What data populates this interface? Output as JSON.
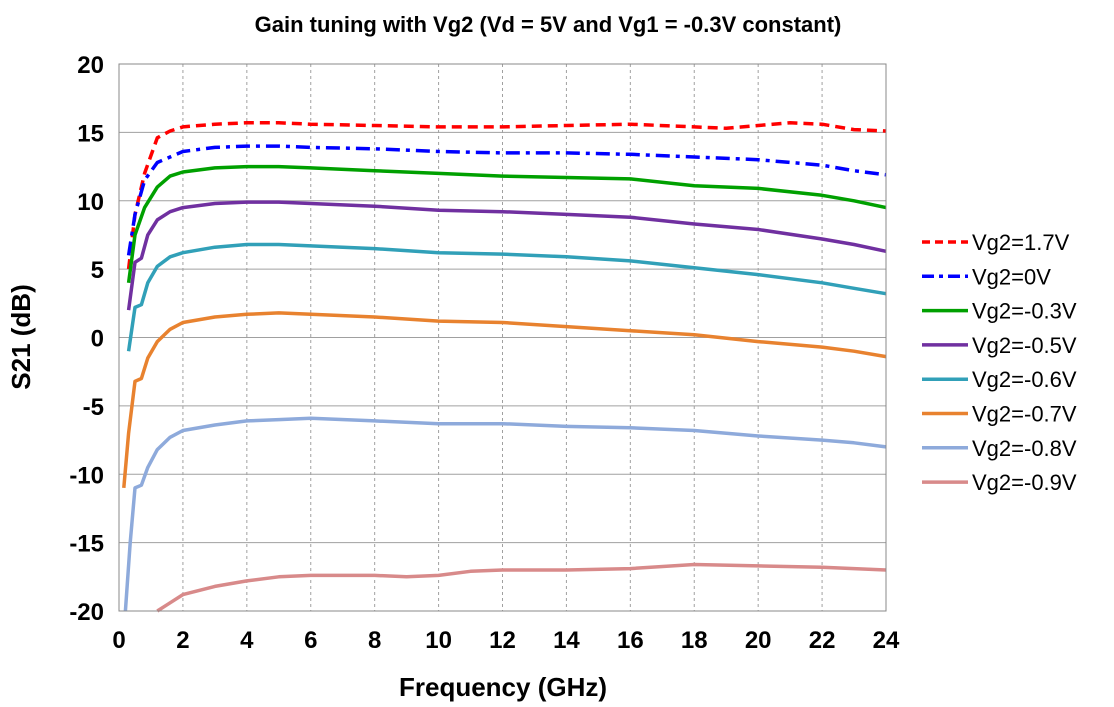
{
  "chart_data": {
    "type": "line",
    "title": "Gain tuning with Vg2 (Vd = 5V and Vg1 = -0.3V constant)",
    "xlabel": "Frequency (GHz)",
    "ylabel": "S21 (dB)",
    "xlim": [
      0,
      24
    ],
    "ylim": [
      -20,
      20
    ],
    "xticks": [
      0,
      2,
      4,
      6,
      8,
      10,
      12,
      14,
      16,
      18,
      20,
      22,
      24
    ],
    "yticks": [
      -20,
      -15,
      -10,
      -5,
      0,
      5,
      10,
      15,
      20
    ],
    "grid": {
      "vertical": "dashed",
      "horizontal": "solid"
    },
    "legend_position": "right",
    "series": [
      {
        "name": "Vg2=1.7V",
        "color": "#ff0000",
        "style": "dashed",
        "points": [
          [
            0.3,
            5
          ],
          [
            0.5,
            9
          ],
          [
            0.8,
            12
          ],
          [
            1.2,
            14.6
          ],
          [
            1.6,
            15.1
          ],
          [
            2,
            15.4
          ],
          [
            3,
            15.6
          ],
          [
            4,
            15.7
          ],
          [
            5,
            15.7
          ],
          [
            6,
            15.6
          ],
          [
            8,
            15.5
          ],
          [
            10,
            15.4
          ],
          [
            12,
            15.4
          ],
          [
            14,
            15.5
          ],
          [
            16,
            15.6
          ],
          [
            18,
            15.4
          ],
          [
            19,
            15.3
          ],
          [
            20,
            15.5
          ],
          [
            21,
            15.7
          ],
          [
            22,
            15.6
          ],
          [
            23,
            15.2
          ],
          [
            24,
            15.1
          ]
        ]
      },
      {
        "name": "Vg2=0V",
        "color": "#0000ff",
        "style": "dashdot",
        "points": [
          [
            0.3,
            6
          ],
          [
            0.5,
            9
          ],
          [
            0.8,
            11.5
          ],
          [
            1.2,
            12.8
          ],
          [
            1.6,
            13.2
          ],
          [
            2,
            13.6
          ],
          [
            3,
            13.9
          ],
          [
            4,
            14.0
          ],
          [
            5,
            14.0
          ],
          [
            6,
            13.9
          ],
          [
            8,
            13.8
          ],
          [
            10,
            13.6
          ],
          [
            12,
            13.5
          ],
          [
            14,
            13.5
          ],
          [
            16,
            13.4
          ],
          [
            18,
            13.2
          ],
          [
            20,
            13.0
          ],
          [
            22,
            12.6
          ],
          [
            23,
            12.2
          ],
          [
            24,
            11.9
          ]
        ]
      },
      {
        "name": "Vg2=-0.3V",
        "color": "#00a000",
        "style": "solid",
        "points": [
          [
            0.3,
            4
          ],
          [
            0.5,
            7.5
          ],
          [
            0.8,
            9.5
          ],
          [
            1.2,
            11
          ],
          [
            1.6,
            11.8
          ],
          [
            2,
            12.1
          ],
          [
            3,
            12.4
          ],
          [
            4,
            12.5
          ],
          [
            5,
            12.5
          ],
          [
            6,
            12.4
          ],
          [
            8,
            12.2
          ],
          [
            10,
            12.0
          ],
          [
            12,
            11.8
          ],
          [
            14,
            11.7
          ],
          [
            16,
            11.6
          ],
          [
            18,
            11.1
          ],
          [
            20,
            10.9
          ],
          [
            22,
            10.4
          ],
          [
            23,
            10.0
          ],
          [
            24,
            9.5
          ]
        ]
      },
      {
        "name": "Vg2=-0.5V",
        "color": "#7030a0",
        "style": "solid",
        "points": [
          [
            0.3,
            2
          ],
          [
            0.5,
            5.5
          ],
          [
            0.7,
            5.8
          ],
          [
            0.9,
            7.5
          ],
          [
            1.2,
            8.6
          ],
          [
            1.6,
            9.2
          ],
          [
            2,
            9.5
          ],
          [
            3,
            9.8
          ],
          [
            4,
            9.9
          ],
          [
            5,
            9.9
          ],
          [
            6,
            9.8
          ],
          [
            8,
            9.6
          ],
          [
            10,
            9.3
          ],
          [
            12,
            9.2
          ],
          [
            14,
            9.0
          ],
          [
            16,
            8.8
          ],
          [
            18,
            8.3
          ],
          [
            20,
            7.9
          ],
          [
            22,
            7.2
          ],
          [
            23,
            6.8
          ],
          [
            24,
            6.3
          ]
        ]
      },
      {
        "name": "Vg2=-0.6V",
        "color": "#31a0b8",
        "style": "solid",
        "points": [
          [
            0.3,
            -1
          ],
          [
            0.5,
            2.2
          ],
          [
            0.7,
            2.4
          ],
          [
            0.9,
            4
          ],
          [
            1.2,
            5.2
          ],
          [
            1.6,
            5.9
          ],
          [
            2,
            6.2
          ],
          [
            3,
            6.6
          ],
          [
            4,
            6.8
          ],
          [
            5,
            6.8
          ],
          [
            6,
            6.7
          ],
          [
            8,
            6.5
          ],
          [
            10,
            6.2
          ],
          [
            12,
            6.1
          ],
          [
            14,
            5.9
          ],
          [
            16,
            5.6
          ],
          [
            18,
            5.1
          ],
          [
            20,
            4.6
          ],
          [
            22,
            4.0
          ],
          [
            23,
            3.6
          ],
          [
            24,
            3.2
          ]
        ]
      },
      {
        "name": "Vg2=-0.7V",
        "color": "#e8822f",
        "style": "solid",
        "points": [
          [
            0.15,
            -11
          ],
          [
            0.3,
            -7
          ],
          [
            0.5,
            -3.2
          ],
          [
            0.7,
            -3.0
          ],
          [
            0.9,
            -1.5
          ],
          [
            1.2,
            -0.3
          ],
          [
            1.6,
            0.6
          ],
          [
            2,
            1.1
          ],
          [
            3,
            1.5
          ],
          [
            4,
            1.7
          ],
          [
            5,
            1.8
          ],
          [
            6,
            1.7
          ],
          [
            8,
            1.5
          ],
          [
            10,
            1.2
          ],
          [
            12,
            1.1
          ],
          [
            14,
            0.8
          ],
          [
            16,
            0.5
          ],
          [
            18,
            0.2
          ],
          [
            20,
            -0.3
          ],
          [
            22,
            -0.7
          ],
          [
            23,
            -1.0
          ],
          [
            24,
            -1.4
          ]
        ]
      },
      {
        "name": "Vg2=-0.8V",
        "color": "#8eaadb",
        "style": "solid",
        "points": [
          [
            0.2,
            -20
          ],
          [
            0.35,
            -15
          ],
          [
            0.5,
            -11
          ],
          [
            0.7,
            -10.8
          ],
          [
            0.9,
            -9.5
          ],
          [
            1.2,
            -8.2
          ],
          [
            1.6,
            -7.3
          ],
          [
            2,
            -6.8
          ],
          [
            3,
            -6.4
          ],
          [
            4,
            -6.1
          ],
          [
            5,
            -6.0
          ],
          [
            6,
            -5.9
          ],
          [
            8,
            -6.1
          ],
          [
            10,
            -6.3
          ],
          [
            12,
            -6.3
          ],
          [
            14,
            -6.5
          ],
          [
            16,
            -6.6
          ],
          [
            18,
            -6.8
          ],
          [
            20,
            -7.2
          ],
          [
            22,
            -7.5
          ],
          [
            23,
            -7.7
          ],
          [
            24,
            -8.0
          ]
        ]
      },
      {
        "name": "Vg2=-0.9V",
        "color": "#d88a8a",
        "style": "solid",
        "points": [
          [
            1.2,
            -20
          ],
          [
            1.6,
            -19.4
          ],
          [
            2,
            -18.8
          ],
          [
            3,
            -18.2
          ],
          [
            4,
            -17.8
          ],
          [
            5,
            -17.5
          ],
          [
            6,
            -17.4
          ],
          [
            7,
            -17.4
          ],
          [
            8,
            -17.4
          ],
          [
            9,
            -17.5
          ],
          [
            10,
            -17.4
          ],
          [
            11,
            -17.1
          ],
          [
            12,
            -17.0
          ],
          [
            14,
            -17.0
          ],
          [
            16,
            -16.9
          ],
          [
            18,
            -16.6
          ],
          [
            20,
            -16.7
          ],
          [
            22,
            -16.8
          ],
          [
            23,
            -16.9
          ],
          [
            24,
            -17.0
          ]
        ]
      }
    ]
  }
}
